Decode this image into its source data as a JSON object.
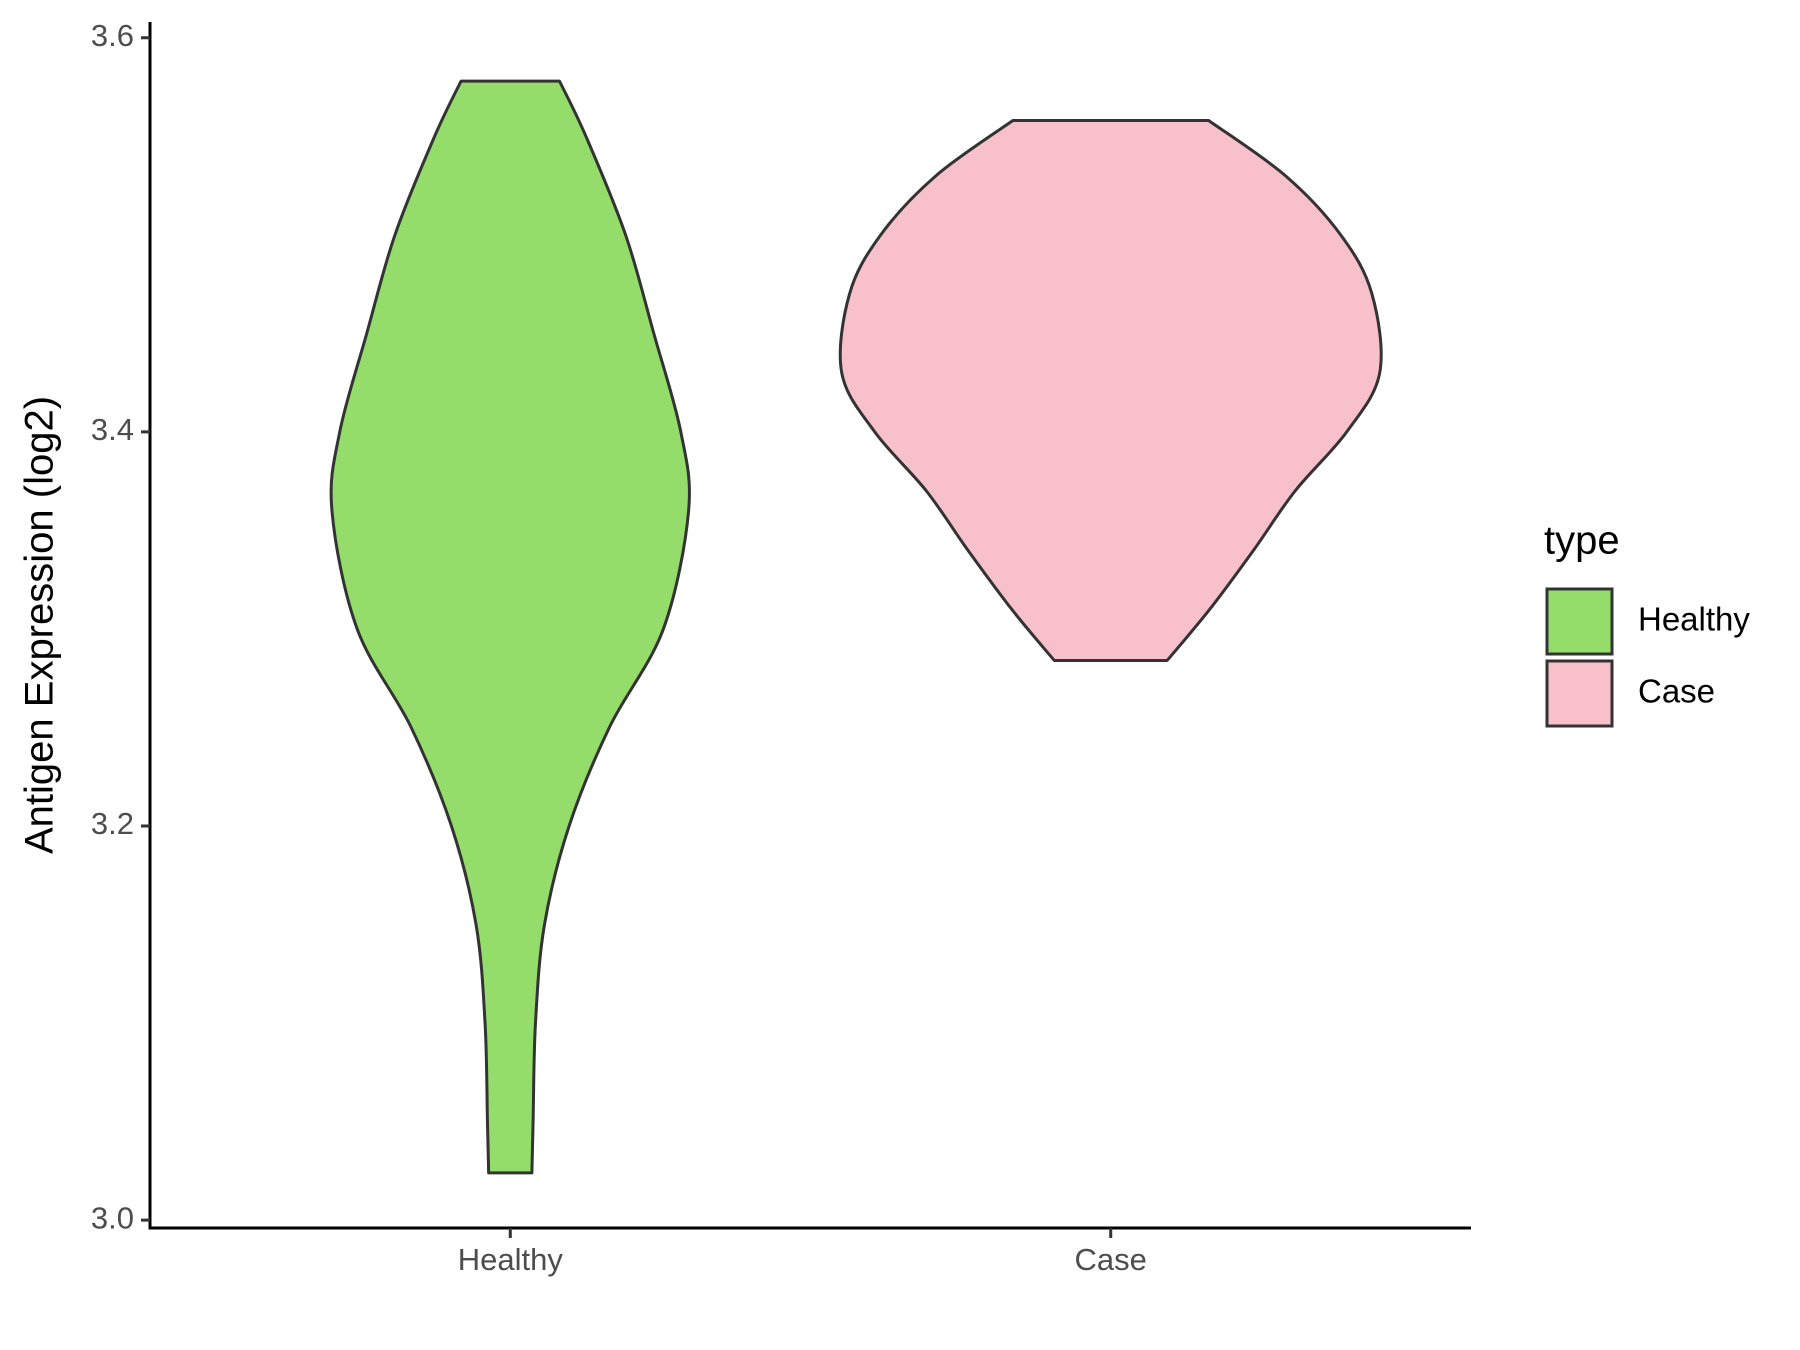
{
  "chart_data": {
    "type": "violin",
    "y_label": "Antigen Expression (log2)",
    "categories": [
      "Healthy",
      "Case"
    ],
    "series": [
      {
        "name": "Healthy",
        "color": "#94dd6b",
        "values": [
          3.578,
          3.55,
          3.5,
          3.45,
          3.4,
          3.36,
          3.3,
          3.25,
          3.2,
          3.15,
          3.1,
          3.05,
          3.024
        ],
        "widths": [
          0.082,
          0.126,
          0.192,
          0.239,
          0.284,
          0.297,
          0.255,
          0.165,
          0.098,
          0.057,
          0.042,
          0.038,
          0.036
        ]
      },
      {
        "name": "Case",
        "color": "#f7c0cb",
        "values": [
          3.558,
          3.53,
          3.5,
          3.47,
          3.43,
          3.4,
          3.37,
          3.34,
          3.31,
          3.284
        ],
        "widths": [
          0.163,
          0.291,
          0.383,
          0.435,
          0.448,
          0.393,
          0.307,
          0.238,
          0.165,
          0.094
        ]
      }
    ],
    "ylim": [
      2.996,
      3.608
    ],
    "yticks": [
      {
        "value": 3,
        "label": "3.0"
      },
      3.2,
      3.4,
      3.6
    ],
    "legend_title": "type",
    "legend": "right"
  }
}
